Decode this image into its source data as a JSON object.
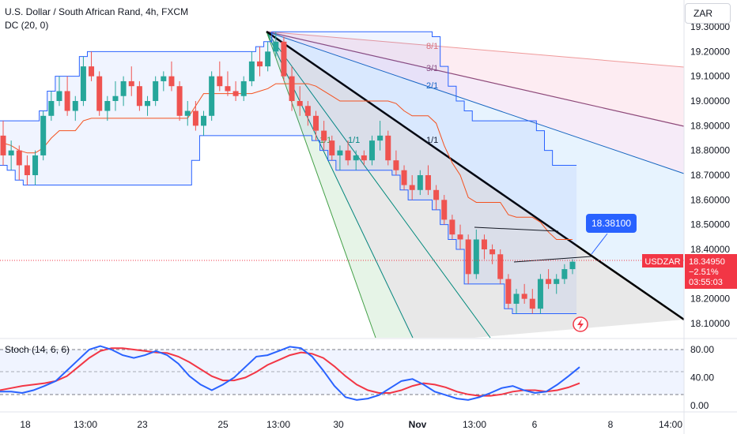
{
  "header": {
    "title": "U.S. Dollar / South African Rand, 4h, FXCM",
    "indicator": "DC (20, 0)",
    "currency_button": "ZAR"
  },
  "colors": {
    "up": "#26a69a",
    "down": "#ef5350",
    "donchian": "#2962ff",
    "donchian_mid": "#f4511e",
    "stoch_k": "#2962ff",
    "stoch_d": "#f23645",
    "trend": "#000000"
  },
  "chart_data": [
    {
      "type": "candlestick",
      "title": "U.S. Dollar / South African Rand, 4h, FXCM",
      "y_axis": {
        "ticks": [
          "19.30000",
          "19.20000",
          "19.10000",
          "19.00000",
          "18.90000",
          "18.80000",
          "18.70000",
          "18.60000",
          "18.50000",
          "18.40000",
          "18.30000",
          "18.20000",
          "18.10000"
        ],
        "range": [
          18.06,
          19.34
        ]
      },
      "x_axis": {
        "ticks": [
          "18",
          "13:00",
          "23",
          "25",
          "13:00",
          "30",
          "Nov",
          "13:00",
          "6",
          "8",
          "14:00"
        ]
      },
      "last_price": {
        "symbol": "USDZAR",
        "value": "18.34950",
        "change": "−2.51%",
        "countdown": "03:55:03"
      },
      "callout": "18.38100",
      "fan_labels": [
        "8/1",
        "3/1",
        "2/1",
        "1/1",
        "1/1",
        "1/1"
      ],
      "ohlc": [
        [
          18.86,
          18.92,
          18.74,
          18.78
        ],
        [
          18.78,
          18.84,
          18.72,
          18.8
        ],
        [
          18.8,
          18.82,
          18.68,
          18.74
        ],
        [
          18.74,
          18.78,
          18.66,
          18.7
        ],
        [
          18.7,
          18.8,
          18.66,
          18.78
        ],
        [
          18.78,
          18.96,
          18.76,
          18.94
        ],
        [
          18.94,
          19.04,
          18.92,
          19.0
        ],
        [
          19.0,
          19.1,
          18.98,
          19.04
        ],
        [
          19.04,
          19.1,
          18.94,
          18.96
        ],
        [
          18.96,
          19.02,
          18.92,
          19.0
        ],
        [
          19.0,
          19.18,
          18.98,
          19.14
        ],
        [
          19.14,
          19.2,
          19.08,
          19.1
        ],
        [
          19.1,
          19.12,
          18.94,
          18.96
        ],
        [
          18.96,
          19.02,
          18.92,
          19.0
        ],
        [
          19.0,
          19.08,
          18.96,
          19.02
        ],
        [
          19.02,
          19.1,
          18.98,
          19.08
        ],
        [
          19.08,
          19.14,
          19.02,
          19.06
        ],
        [
          19.06,
          19.08,
          18.96,
          18.98
        ],
        [
          18.98,
          19.02,
          18.94,
          19.0
        ],
        [
          19.0,
          19.1,
          18.98,
          19.08
        ],
        [
          19.08,
          19.12,
          19.04,
          19.1
        ],
        [
          19.1,
          19.16,
          19.04,
          19.06
        ],
        [
          19.06,
          19.08,
          18.92,
          18.94
        ],
        [
          18.94,
          19.0,
          18.9,
          18.96
        ],
        [
          18.96,
          19.0,
          18.88,
          18.9
        ],
        [
          18.9,
          18.96,
          18.86,
          18.94
        ],
        [
          18.94,
          19.12,
          18.92,
          19.1
        ],
        [
          19.1,
          19.16,
          19.04,
          19.06
        ],
        [
          19.06,
          19.12,
          19.02,
          19.04
        ],
        [
          19.04,
          19.08,
          19.0,
          19.02
        ],
        [
          19.02,
          19.1,
          19.0,
          19.08
        ],
        [
          19.08,
          19.2,
          19.06,
          19.16
        ],
        [
          19.16,
          19.22,
          19.1,
          19.14
        ],
        [
          19.14,
          19.24,
          19.12,
          19.2
        ],
        [
          19.2,
          19.28,
          19.18,
          19.24
        ],
        [
          19.24,
          19.26,
          19.08,
          19.1
        ],
        [
          19.1,
          19.14,
          18.96,
          19.0
        ],
        [
          19.0,
          19.06,
          18.94,
          18.98
        ],
        [
          18.98,
          19.0,
          18.9,
          18.94
        ],
        [
          18.94,
          18.96,
          18.84,
          18.88
        ],
        [
          18.88,
          18.92,
          18.8,
          18.84
        ],
        [
          18.84,
          18.86,
          18.76,
          18.78
        ],
        [
          18.78,
          18.82,
          18.72,
          18.8
        ],
        [
          18.8,
          18.84,
          18.74,
          18.76
        ],
        [
          18.76,
          18.8,
          18.72,
          18.78
        ],
        [
          18.78,
          18.8,
          18.74,
          18.76
        ],
        [
          18.76,
          18.86,
          18.74,
          18.84
        ],
        [
          18.84,
          18.92,
          18.8,
          18.86
        ],
        [
          18.86,
          18.88,
          18.74,
          18.76
        ],
        [
          18.76,
          18.8,
          18.7,
          18.72
        ],
        [
          18.72,
          18.74,
          18.64,
          18.66
        ],
        [
          18.66,
          18.7,
          18.6,
          18.64
        ],
        [
          18.64,
          18.72,
          18.62,
          18.7
        ],
        [
          18.7,
          18.74,
          18.62,
          18.64
        ],
        [
          18.64,
          18.66,
          18.56,
          18.6
        ],
        [
          18.6,
          18.62,
          18.5,
          18.52
        ],
        [
          18.52,
          18.54,
          18.44,
          18.46
        ],
        [
          18.46,
          18.5,
          18.4,
          18.44
        ],
        [
          18.44,
          18.46,
          18.26,
          18.3
        ],
        [
          18.3,
          18.48,
          18.28,
          18.44
        ],
        [
          18.44,
          18.46,
          18.36,
          18.4
        ],
        [
          18.4,
          18.42,
          18.34,
          18.38
        ],
        [
          18.38,
          18.4,
          18.26,
          18.28
        ],
        [
          18.28,
          18.3,
          18.16,
          18.18
        ],
        [
          18.18,
          18.24,
          18.14,
          18.22
        ],
        [
          18.22,
          18.26,
          18.18,
          18.2
        ],
        [
          18.2,
          18.24,
          18.14,
          18.16
        ],
        [
          18.16,
          18.3,
          18.14,
          18.28
        ],
        [
          18.28,
          18.32,
          18.24,
          18.26
        ],
        [
          18.26,
          18.3,
          18.22,
          18.28
        ],
        [
          18.28,
          18.34,
          18.26,
          18.32
        ],
        [
          18.32,
          18.36,
          18.3,
          18.35
        ]
      ]
    },
    {
      "type": "line",
      "title": "Stoch (14, 6, 6)",
      "y_axis": {
        "ticks": [
          "80.00",
          "40.00",
          "0.00"
        ],
        "range": [
          0,
          100
        ]
      },
      "series": [
        {
          "values": [
            20,
            20,
            18,
            22,
            28,
            35,
            50,
            65,
            80,
            85,
            80,
            72,
            68,
            72,
            78,
            72,
            60,
            42,
            30,
            22,
            30,
            40,
            55,
            70,
            72,
            78,
            84,
            82,
            70,
            50,
            28,
            12,
            8,
            10,
            15,
            25,
            35,
            38,
            30,
            20,
            15,
            10,
            8,
            12,
            18,
            25,
            28,
            22,
            18,
            20,
            30,
            42,
            55
          ]
        },
        {
          "values": [
            22,
            25,
            28,
            30,
            32,
            35,
            42,
            55,
            68,
            78,
            82,
            82,
            80,
            78,
            76,
            75,
            70,
            62,
            52,
            42,
            36,
            36,
            40,
            48,
            58,
            65,
            72,
            76,
            74,
            68,
            56,
            42,
            30,
            22,
            18,
            18,
            22,
            28,
            32,
            30,
            26,
            20,
            16,
            14,
            14,
            16,
            20,
            22,
            22,
            20,
            22,
            26,
            32
          ]
        }
      ]
    }
  ]
}
